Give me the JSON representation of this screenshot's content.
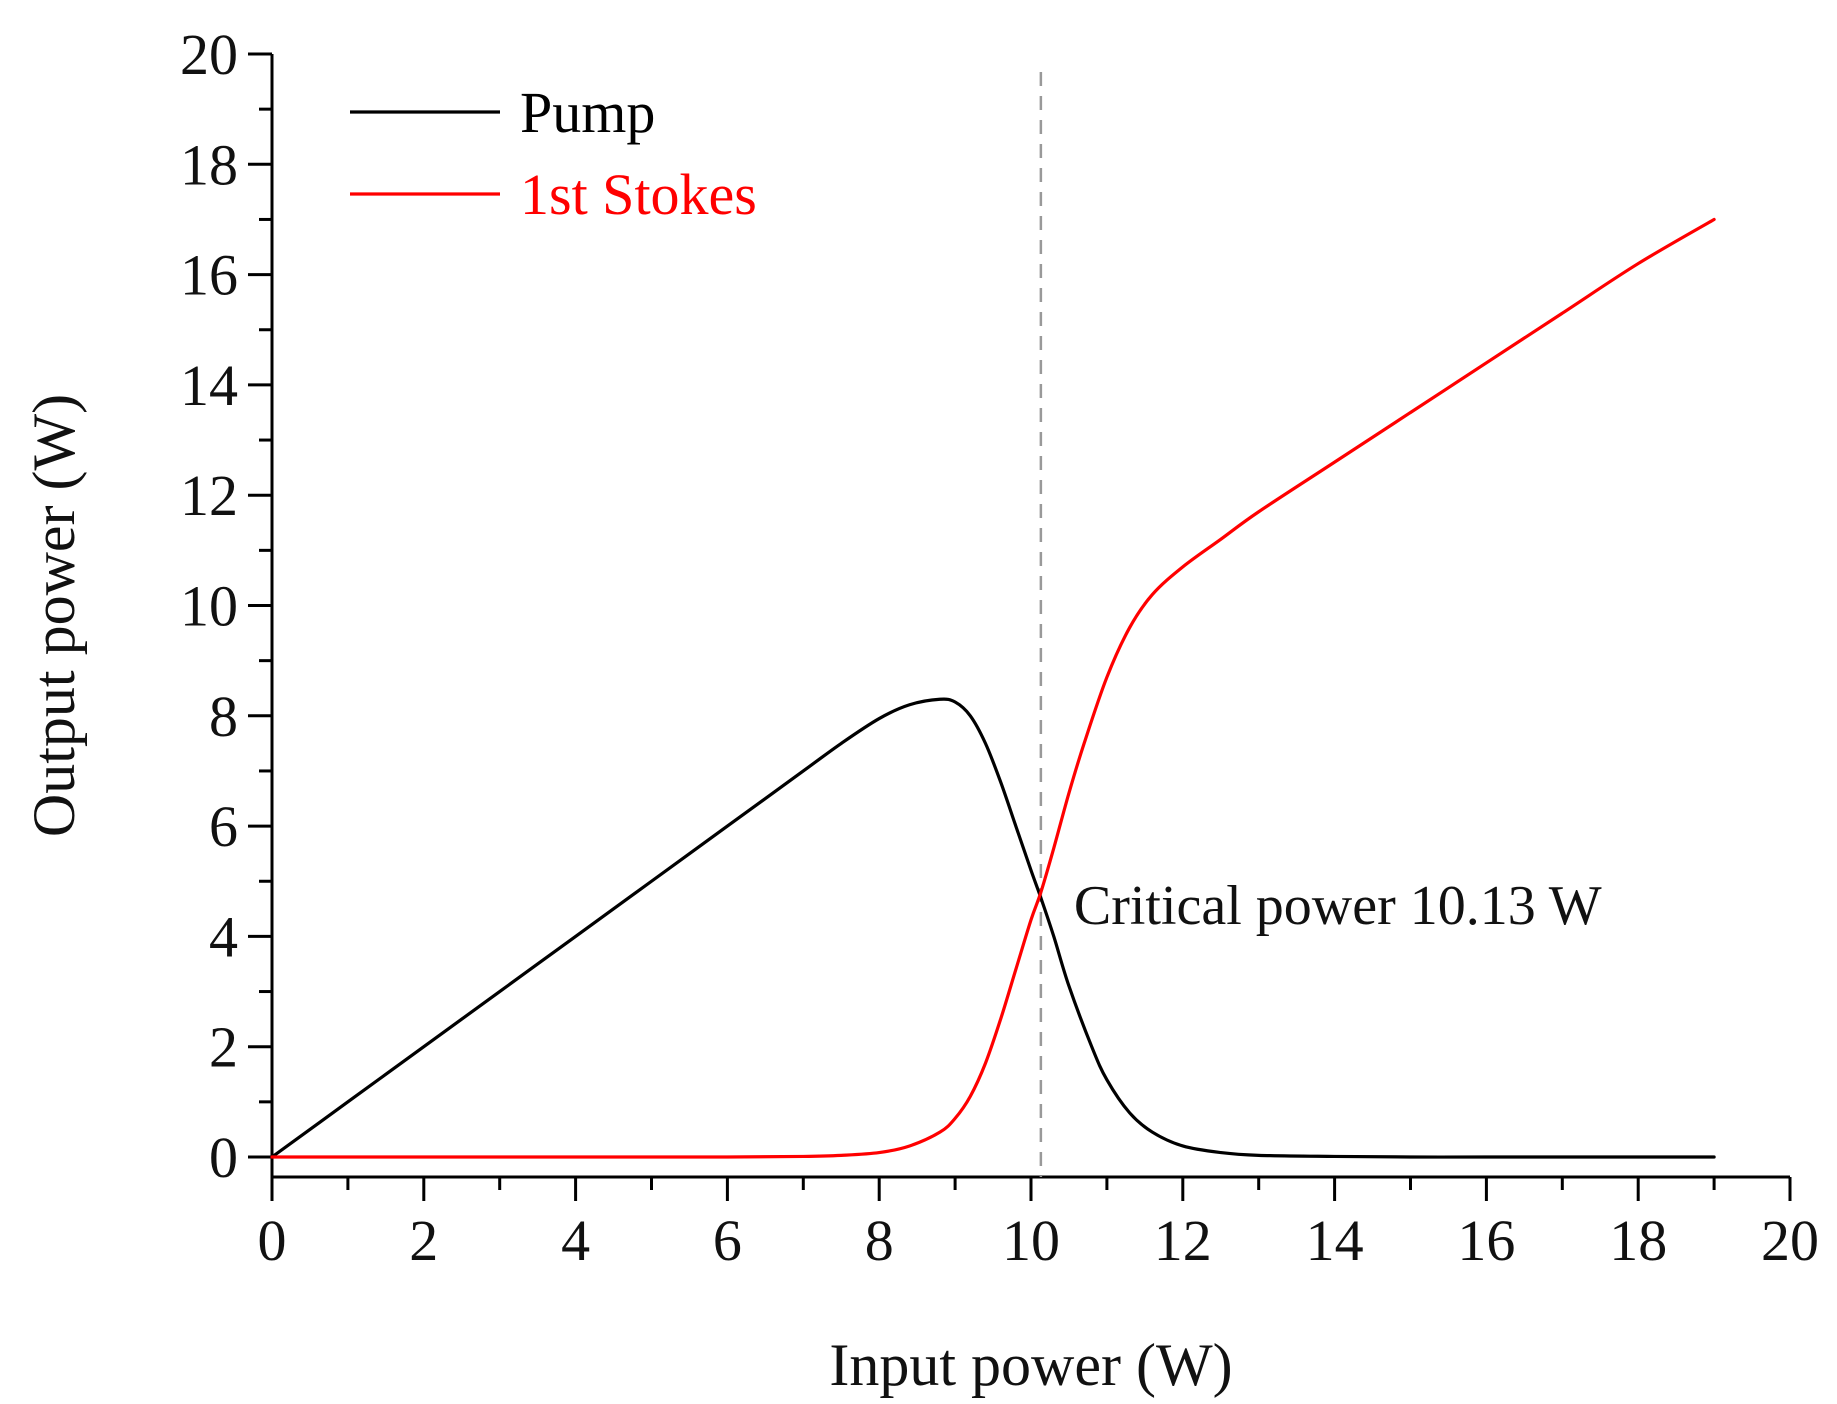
{
  "chart_data": {
    "type": "line",
    "title": "",
    "xlabel": "Input power (W)",
    "ylabel": "Output power (W)",
    "xlim": [
      0,
      20
    ],
    "ylim": [
      0,
      20
    ],
    "xticks": [
      0,
      2,
      4,
      6,
      8,
      10,
      12,
      14,
      16,
      18,
      20
    ],
    "yticks": [
      0,
      2,
      4,
      6,
      8,
      10,
      12,
      14,
      16,
      18,
      20
    ],
    "grid": false,
    "legend_position": "top-left",
    "series": [
      {
        "name": "Pump",
        "color": "#000000",
        "x": [
          0,
          1,
          2,
          3,
          4,
          5,
          6,
          7,
          7.5,
          8,
          8.4,
          8.8,
          9.0,
          9.2,
          9.4,
          9.6,
          9.8,
          10.0,
          10.13,
          10.3,
          10.5,
          10.8,
          11.0,
          11.3,
          11.6,
          12.0,
          12.5,
          13.0,
          14,
          15,
          16,
          17,
          18,
          19
        ],
        "y": [
          0,
          1.0,
          2.0,
          3.0,
          4.0,
          5.0,
          6.0,
          7.0,
          7.5,
          7.95,
          8.2,
          8.3,
          8.25,
          8.0,
          7.5,
          6.8,
          6.0,
          5.2,
          4.7,
          4.0,
          3.1,
          2.0,
          1.4,
          0.8,
          0.45,
          0.2,
          0.08,
          0.03,
          0.01,
          0,
          0,
          0,
          0,
          0
        ]
      },
      {
        "name": "1st Stokes",
        "color": "#ff0000",
        "x": [
          0,
          2,
          4,
          6,
          7,
          7.5,
          8,
          8.4,
          8.8,
          9.0,
          9.2,
          9.4,
          9.6,
          9.8,
          10.0,
          10.13,
          10.3,
          10.5,
          10.7,
          11.0,
          11.3,
          11.6,
          12.0,
          12.5,
          13,
          14,
          15,
          16,
          17,
          18,
          19
        ],
        "y": [
          0,
          0,
          0,
          0,
          0.01,
          0.03,
          0.08,
          0.2,
          0.45,
          0.7,
          1.1,
          1.7,
          2.5,
          3.4,
          4.3,
          4.8,
          5.6,
          6.6,
          7.5,
          8.7,
          9.6,
          10.2,
          10.7,
          11.2,
          11.7,
          12.6,
          13.5,
          14.4,
          15.3,
          16.2,
          17.0
        ]
      }
    ],
    "reference_line": {
      "type": "vertical",
      "x": 10.13,
      "style": "dashed",
      "color": "#999999"
    },
    "annotation": {
      "text": "Critical power 10.13 W",
      "x": 10.13,
      "y": 4.7
    },
    "axis_color": "#000000"
  }
}
